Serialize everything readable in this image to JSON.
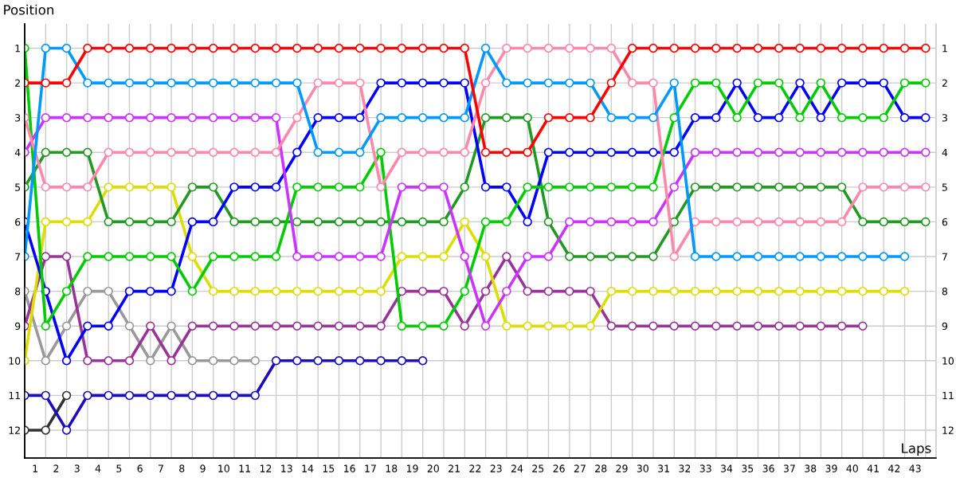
{
  "chart_data": {
    "type": "line",
    "xlabel": "Laps",
    "ylabel": "Position",
    "x": [
      0,
      1,
      2,
      3,
      4,
      5,
      6,
      7,
      8,
      9,
      10,
      11,
      12,
      13,
      14,
      15,
      16,
      17,
      18,
      19,
      20,
      21,
      22,
      23,
      24,
      25,
      26,
      27,
      28,
      29,
      30,
      31,
      32,
      33,
      34,
      35,
      36,
      37,
      38,
      39,
      40,
      41,
      42,
      43
    ],
    "xlim": [
      0,
      43.5
    ],
    "xticks": [
      {
        "value": 0,
        "label": null
      },
      {
        "value": 0.5,
        "label": "1"
      },
      {
        "value": 1,
        "label": null
      },
      {
        "value": 1.5,
        "label": "2"
      },
      {
        "value": 2,
        "label": null
      },
      {
        "value": 2.5,
        "label": "3"
      },
      {
        "value": 3,
        "label": null
      },
      {
        "value": 3.5,
        "label": "4"
      },
      {
        "value": 4,
        "label": null
      },
      {
        "value": 4.5,
        "label": "5"
      },
      {
        "value": 5,
        "label": null
      },
      {
        "value": 5.5,
        "label": "6"
      },
      {
        "value": 6,
        "label": null
      },
      {
        "value": 6.5,
        "label": "7"
      },
      {
        "value": 7,
        "label": null
      },
      {
        "value": 7.5,
        "label": "8"
      },
      {
        "value": 8,
        "label": null
      },
      {
        "value": 8.5,
        "label": "9"
      },
      {
        "value": 9,
        "label": null
      },
      {
        "value": 9.5,
        "label": "10"
      },
      {
        "value": 10,
        "label": null
      },
      {
        "value": 10.5,
        "label": "11"
      },
      {
        "value": 11,
        "label": null
      },
      {
        "value": 11.5,
        "label": "12"
      },
      {
        "value": 12,
        "label": null
      },
      {
        "value": 12.5,
        "label": "13"
      },
      {
        "value": 13,
        "label": null
      },
      {
        "value": 13.5,
        "label": "14"
      },
      {
        "value": 14,
        "label": null
      },
      {
        "value": 14.5,
        "label": "15"
      },
      {
        "value": 15,
        "label": null
      },
      {
        "value": 15.5,
        "label": "16"
      },
      {
        "value": 16,
        "label": null
      },
      {
        "value": 16.5,
        "label": "17"
      },
      {
        "value": 17,
        "label": null
      },
      {
        "value": 17.5,
        "label": "18"
      },
      {
        "value": 18,
        "label": null
      },
      {
        "value": 18.5,
        "label": "19"
      },
      {
        "value": 19,
        "label": null
      },
      {
        "value": 19.5,
        "label": "20"
      },
      {
        "value": 20,
        "label": null
      },
      {
        "value": 20.5,
        "label": "21"
      },
      {
        "value": 21,
        "label": null
      },
      {
        "value": 21.5,
        "label": "22"
      },
      {
        "value": 22,
        "label": null
      },
      {
        "value": 22.5,
        "label": "23"
      },
      {
        "value": 23,
        "label": null
      },
      {
        "value": 23.5,
        "label": "24"
      },
      {
        "value": 24,
        "label": null
      },
      {
        "value": 24.5,
        "label": "25"
      },
      {
        "value": 25,
        "label": null
      },
      {
        "value": 25.5,
        "label": "26"
      },
      {
        "value": 26,
        "label": null
      },
      {
        "value": 26.5,
        "label": "27"
      },
      {
        "value": 27,
        "label": null
      },
      {
        "value": 27.5,
        "label": "28"
      },
      {
        "value": 28,
        "label": null
      },
      {
        "value": 28.5,
        "label": "29"
      },
      {
        "value": 29,
        "label": null
      },
      {
        "value": 29.5,
        "label": "30"
      },
      {
        "value": 30,
        "label": null
      },
      {
        "value": 30.5,
        "label": "31"
      },
      {
        "value": 31,
        "label": null
      },
      {
        "value": 31.5,
        "label": "32"
      },
      {
        "value": 32,
        "label": null
      },
      {
        "value": 32.5,
        "label": "33"
      },
      {
        "value": 33,
        "label": null
      },
      {
        "value": 33.5,
        "label": "34"
      },
      {
        "value": 34,
        "label": null
      },
      {
        "value": 34.5,
        "label": "35"
      },
      {
        "value": 35,
        "label": null
      },
      {
        "value": 35.5,
        "label": "36"
      },
      {
        "value": 36,
        "label": null
      },
      {
        "value": 36.5,
        "label": "37"
      },
      {
        "value": 37,
        "label": null
      },
      {
        "value": 37.5,
        "label": "38"
      },
      {
        "value": 38,
        "label": null
      },
      {
        "value": 38.5,
        "label": "39"
      },
      {
        "value": 39,
        "label": null
      },
      {
        "value": 39.5,
        "label": "40"
      },
      {
        "value": 40,
        "label": null
      },
      {
        "value": 40.5,
        "label": "41"
      },
      {
        "value": 41,
        "label": null
      },
      {
        "value": 41.5,
        "label": "42"
      },
      {
        "value": 42,
        "label": null
      },
      {
        "value": 42.5,
        "label": "43"
      },
      {
        "value": 43,
        "label": null
      }
    ],
    "ylim": [
      12.8,
      0.3
    ],
    "yticks": [
      1,
      2,
      3,
      4,
      5,
      6,
      7,
      8,
      9,
      10,
      11,
      12
    ],
    "y2lim": [
      12.8,
      0.3
    ],
    "y2ticks": [
      1,
      2,
      3,
      4,
      5,
      6,
      7,
      8,
      9,
      10,
      11,
      12
    ],
    "grid": true,
    "legend": false,
    "marker": "circle",
    "line_style": "solid",
    "series": [
      {
        "color": "#ff0000",
        "values": [
          2,
          2,
          2,
          1,
          1,
          1,
          1,
          1,
          1,
          1,
          1,
          1,
          1,
          1,
          1,
          1,
          1,
          1,
          1,
          1,
          1,
          1,
          4,
          4,
          4,
          3,
          3,
          3,
          2,
          1,
          1,
          1,
          1,
          1,
          1,
          1,
          1,
          1,
          1,
          1,
          1,
          1,
          1,
          1
        ]
      },
      {
        "color": "#0099ff",
        "values": [
          7,
          1,
          1,
          2,
          2,
          2,
          2,
          2,
          2,
          2,
          2,
          2,
          2,
          2,
          4,
          4,
          4,
          3,
          3,
          3,
          3,
          3,
          1,
          2,
          2,
          2,
          2,
          2,
          3,
          3,
          3,
          2,
          7,
          7,
          7,
          7,
          7,
          7,
          7,
          7,
          7,
          7,
          7,
          null
        ]
      },
      {
        "color": "#ff88aa",
        "values": [
          3,
          5,
          5,
          5,
          4,
          4,
          4,
          4,
          4,
          4,
          4,
          4,
          4,
          3,
          2,
          2,
          2,
          5,
          4,
          4,
          4,
          4,
          2,
          1,
          1,
          1,
          1,
          1,
          1,
          2,
          2,
          7,
          6,
          6,
          6,
          6,
          6,
          6,
          6,
          6,
          5,
          5,
          5,
          5
        ]
      },
      {
        "color": "#cc33ff",
        "values": [
          4,
          3,
          3,
          3,
          3,
          3,
          3,
          3,
          3,
          3,
          3,
          3,
          3,
          7,
          7,
          7,
          7,
          7,
          5,
          5,
          5,
          7,
          9,
          8,
          7,
          7,
          6,
          6,
          6,
          6,
          6,
          5,
          4,
          4,
          4,
          4,
          4,
          4,
          4,
          4,
          4,
          4,
          4,
          4
        ]
      },
      {
        "color": "#00cc00",
        "values": [
          1,
          9,
          8,
          7,
          7,
          7,
          7,
          7,
          8,
          7,
          7,
          7,
          7,
          5,
          5,
          5,
          5,
          4,
          9,
          9,
          9,
          8,
          6,
          6,
          5,
          5,
          5,
          5,
          5,
          5,
          5,
          3,
          2,
          2,
          3,
          2,
          2,
          3,
          2,
          3,
          3,
          3,
          2,
          2
        ]
      },
      {
        "color": "#0000ff",
        "values": [
          6,
          8,
          10,
          9,
          9,
          8,
          8,
          8,
          6,
          6,
          5,
          5,
          5,
          4,
          3,
          3,
          3,
          2,
          2,
          2,
          2,
          2,
          5,
          5,
          6,
          4,
          4,
          4,
          4,
          4,
          4,
          4,
          3,
          3,
          2,
          3,
          3,
          2,
          3,
          2,
          2,
          2,
          3,
          3
        ]
      },
      {
        "color": "#229922",
        "values": [
          5,
          4,
          4,
          4,
          6,
          6,
          6,
          6,
          5,
          5,
          6,
          6,
          6,
          6,
          6,
          6,
          6,
          6,
          6,
          6,
          6,
          5,
          3,
          3,
          3,
          6,
          7,
          7,
          7,
          7,
          7,
          6,
          5,
          5,
          5,
          5,
          5,
          5,
          5,
          5,
          6,
          6,
          6,
          6
        ]
      },
      {
        "color": "#dddd00",
        "values": [
          10,
          6,
          6,
          6,
          5,
          5,
          5,
          5,
          7,
          8,
          8,
          8,
          8,
          8,
          8,
          8,
          8,
          8,
          7,
          7,
          7,
          6,
          7,
          9,
          9,
          9,
          9,
          9,
          8,
          8,
          8,
          8,
          8,
          8,
          8,
          8,
          8,
          8,
          8,
          8,
          8,
          8,
          8,
          null
        ]
      },
      {
        "color": "#993399",
        "values": [
          9,
          7,
          7,
          10,
          10,
          10,
          9,
          10,
          9,
          9,
          9,
          9,
          9,
          9,
          9,
          9,
          9,
          9,
          8,
          8,
          8,
          9,
          8,
          7,
          8,
          8,
          8,
          8,
          9,
          9,
          9,
          9,
          9,
          9,
          9,
          9,
          9,
          9,
          9,
          9,
          9,
          null,
          null,
          null
        ]
      },
      {
        "color": "#999999",
        "values": [
          8,
          10,
          9,
          8,
          8,
          9,
          10,
          9,
          10,
          10,
          10,
          10,
          null,
          null,
          null,
          null,
          null,
          null,
          null,
          null,
          null,
          null,
          null,
          null,
          null,
          null,
          null,
          null,
          null,
          null,
          null,
          null,
          null,
          null,
          null,
          null,
          null,
          null,
          null,
          null,
          null,
          null,
          null,
          null
        ]
      },
      {
        "color": "#1a0dbb",
        "values": [
          11,
          11,
          12,
          11,
          11,
          11,
          11,
          11,
          11,
          11,
          11,
          11,
          10,
          10,
          10,
          10,
          10,
          10,
          10,
          10,
          null,
          null,
          null,
          null,
          null,
          null,
          null,
          null,
          null,
          null,
          null,
          null,
          null,
          null,
          null,
          null,
          null,
          null,
          null,
          null,
          null,
          null,
          null,
          null
        ]
      },
      {
        "color": "#333333",
        "values": [
          12,
          12,
          11,
          null,
          null,
          null,
          null,
          null,
          null,
          null,
          null,
          null,
          null,
          null,
          null,
          null,
          null,
          null,
          null,
          null,
          null,
          null,
          null,
          null,
          null,
          null,
          null,
          null,
          null,
          null,
          null,
          null,
          null,
          null,
          null,
          null,
          null,
          null,
          null,
          null,
          null,
          null,
          null,
          null
        ]
      }
    ]
  }
}
